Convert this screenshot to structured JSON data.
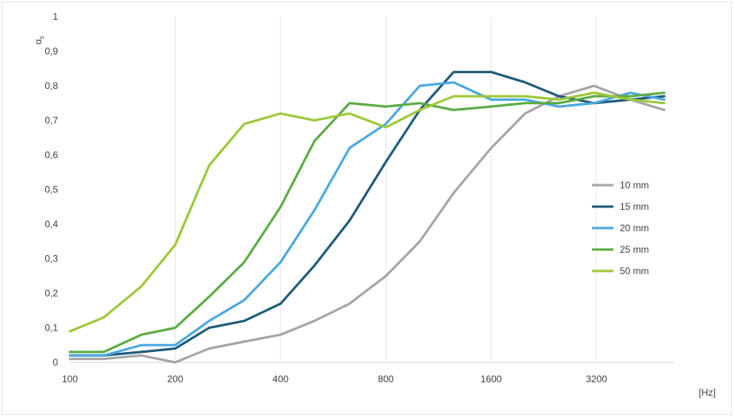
{
  "chart_data": {
    "type": "line",
    "x": [
      100,
      125,
      160,
      200,
      250,
      315,
      400,
      500,
      630,
      800,
      1000,
      1250,
      1600,
      2000,
      2500,
      3150,
      4000,
      5000
    ],
    "x_scale": "log",
    "x_ticks": [
      "100",
      "200",
      "400",
      "800",
      "1600",
      "3200"
    ],
    "x_tick_values": [
      100,
      200,
      400,
      800,
      1600,
      3200
    ],
    "xlabel": "[Hz]",
    "ylabel": "αs",
    "ylabel_main": "α",
    "ylabel_sub": "s",
    "ylim": [
      0,
      1
    ],
    "y_ticks": [
      "0",
      "0,1",
      "0,2",
      "0,3",
      "0,4",
      "0,5",
      "0,6",
      "0,7",
      "0,8",
      "0,9",
      "1"
    ],
    "y_tick_values": [
      0,
      0.1,
      0.2,
      0.3,
      0.4,
      0.5,
      0.6,
      0.7,
      0.8,
      0.9,
      1
    ],
    "grid": "vertical",
    "legend_position": "right",
    "series": [
      {
        "name": "10 mm",
        "color": "#a5a5a5",
        "values": [
          0.01,
          0.01,
          0.02,
          0.0,
          0.04,
          0.06,
          0.08,
          0.12,
          0.17,
          0.25,
          0.35,
          0.49,
          0.62,
          0.72,
          0.77,
          0.8,
          0.76,
          0.73
        ]
      },
      {
        "name": "15 mm",
        "color": "#1f5a7a",
        "values": [
          0.02,
          0.02,
          0.03,
          0.04,
          0.1,
          0.12,
          0.17,
          0.28,
          0.41,
          0.58,
          0.73,
          0.84,
          0.84,
          0.81,
          0.77,
          0.75,
          0.76,
          0.77
        ]
      },
      {
        "name": "20 mm",
        "color": "#4aa8e0",
        "values": [
          0.02,
          0.02,
          0.05,
          0.05,
          0.12,
          0.18,
          0.29,
          0.44,
          0.62,
          0.69,
          0.8,
          0.81,
          0.76,
          0.76,
          0.74,
          0.75,
          0.78,
          0.76
        ]
      },
      {
        "name": "25 mm",
        "color": "#5aac44",
        "values": [
          0.03,
          0.03,
          0.08,
          0.1,
          0.19,
          0.29,
          0.45,
          0.64,
          0.75,
          0.74,
          0.75,
          0.73,
          0.74,
          0.75,
          0.75,
          0.77,
          0.77,
          0.78
        ]
      },
      {
        "name": "50 mm",
        "color": "#9dc83a",
        "values": [
          0.09,
          0.13,
          0.22,
          0.34,
          0.57,
          0.69,
          0.72,
          0.7,
          0.72,
          0.68,
          0.73,
          0.77,
          0.77,
          0.77,
          0.76,
          0.78,
          0.76,
          0.75
        ]
      }
    ]
  }
}
